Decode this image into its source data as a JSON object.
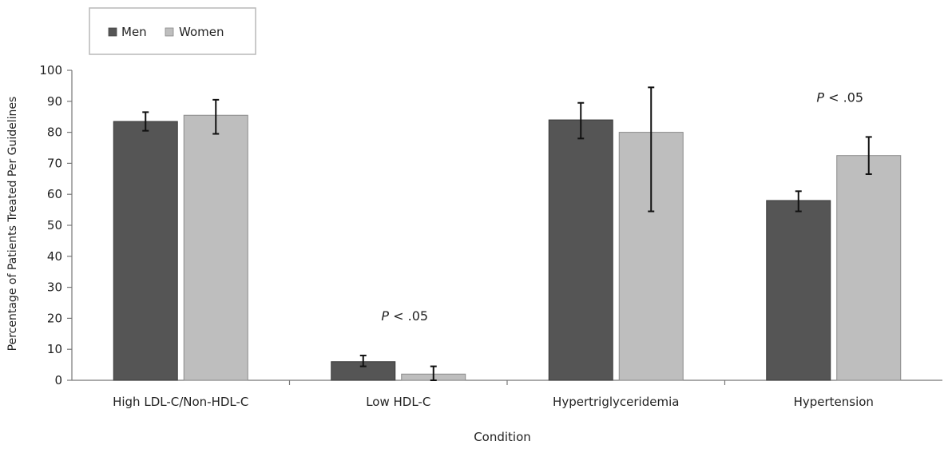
{
  "chart_data": {
    "type": "bar",
    "title": "",
    "xlabel": "Condition",
    "ylabel": "Percentage of Patients Treated Per Guidelines",
    "ylim": [
      0,
      100
    ],
    "yticks": [
      0,
      10,
      20,
      30,
      40,
      50,
      60,
      70,
      80,
      90,
      100
    ],
    "grid": false,
    "legend_position": "top-left",
    "categories": [
      "High LDL-C/Non-HDL-C",
      "Low HDL-C",
      "Hypertriglyceridemia",
      "Hypertension"
    ],
    "series": [
      {
        "name": "Men",
        "color": "#555555",
        "values": [
          83.5,
          6.0,
          84.0,
          58.0
        ],
        "error_low": [
          80.5,
          4.5,
          78.0,
          54.5
        ],
        "error_high": [
          86.5,
          8.0,
          89.5,
          61.0
        ]
      },
      {
        "name": "Women",
        "color": "#BEBEBE",
        "values": [
          85.5,
          2.0,
          80.0,
          72.5
        ],
        "error_low": [
          79.5,
          0.0,
          54.5,
          66.5
        ],
        "error_high": [
          90.5,
          4.5,
          94.5,
          78.5
        ]
      }
    ],
    "annotations": [
      {
        "category_index": 1,
        "text": "P < .05"
      },
      {
        "category_index": 3,
        "text": "P < .05"
      }
    ]
  }
}
